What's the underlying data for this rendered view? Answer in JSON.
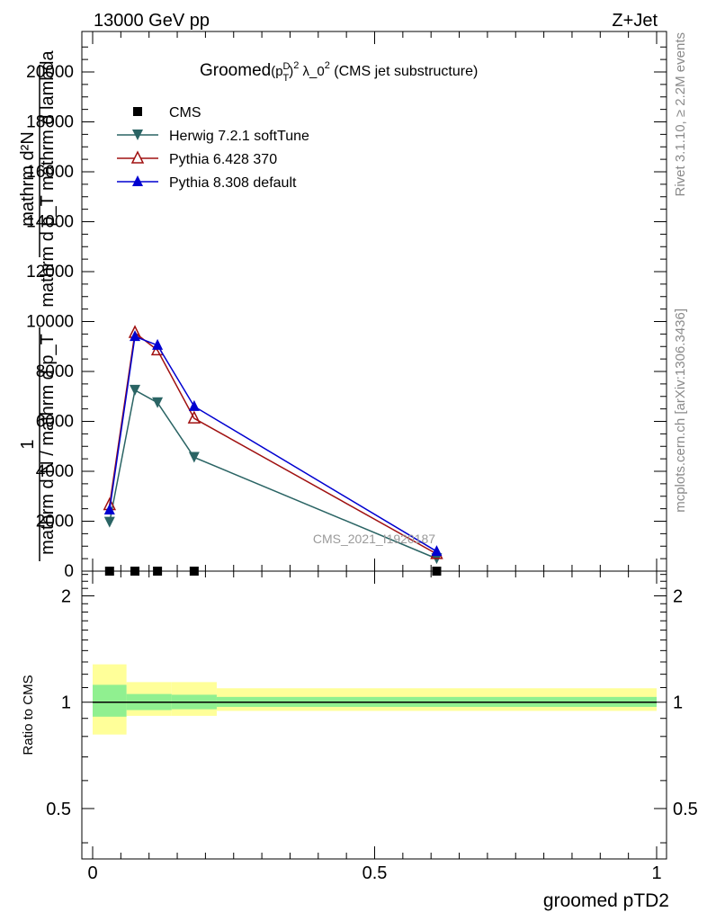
{
  "header": {
    "energy": "13000 GeV pp",
    "process": "Z+Jet"
  },
  "side": {
    "rivet": "Rivet 3.1.10, ≥ 2.2M events",
    "mcplots": "mcplots.cern.ch [arXiv:1306.3436]"
  },
  "chart_data": [
    {
      "type": "line",
      "title": "Groomed(p_T^D)^2 λ_0^2 (CMS jet substructure)",
      "title_parts": {
        "a": "Groomed",
        "b": "(p",
        "b_sup": "D",
        "b_sub": "T",
        "c": ")",
        "c_sup": "2",
        "d": " λ_0",
        "d_sup": "2",
        "e": " (CMS jet substructure)"
      },
      "ylabel_parts": [
        "mathrm d²N",
        "mathrm d p_T mathrm d lambda",
        "1",
        "mathrm d N / mathrm d p_T"
      ],
      "xlabel": "groomed pTD2",
      "watermark": "CMS_2021_I1920187",
      "xlim": [
        0,
        1
      ],
      "ylim": [
        0,
        21500
      ],
      "yticks": [
        0,
        2000,
        4000,
        6000,
        8000,
        10000,
        12000,
        14000,
        16000,
        18000,
        20000
      ],
      "ytick_labels": [
        "0",
        "2000",
        "4000",
        "6000",
        "8000",
        "10000",
        "12000",
        "14000",
        "16000",
        "18000",
        "20000"
      ],
      "legend_position": "top-left",
      "series": [
        {
          "name": "CMS",
          "color": "#000000",
          "marker": "square",
          "x": [
            0.03,
            0.075,
            0.115,
            0.18,
            0.61
          ],
          "y": [
            0,
            0,
            0,
            0,
            0
          ]
        },
        {
          "name": "Herwig 7.2.1 softTune",
          "color": "#2a6464",
          "marker": "triangle-down",
          "x": [
            0.03,
            0.075,
            0.115,
            0.18,
            0.61
          ],
          "y": [
            1960,
            7250,
            6750,
            4560,
            500
          ]
        },
        {
          "name": "Pythia 6.428 370",
          "color": "#a01010",
          "marker": "triangle-up-open",
          "x": [
            0.03,
            0.075,
            0.115,
            0.18,
            0.61
          ],
          "y": [
            2650,
            9550,
            8850,
            6120,
            690
          ]
        },
        {
          "name": "Pythia 8.308 default",
          "color": "#0000d0",
          "marker": "triangle-up",
          "x": [
            0.03,
            0.075,
            0.115,
            0.18,
            0.61
          ],
          "y": [
            2450,
            9400,
            9050,
            6600,
            790
          ]
        }
      ]
    },
    {
      "type": "area",
      "ylabel": "Ratio to CMS",
      "xlabel": "groomed pTD2",
      "xlim": [
        0,
        1
      ],
      "ylim": [
        0.36,
        2.35
      ],
      "ylog": true,
      "yticks": [
        0.5,
        1,
        2
      ],
      "ytick_labels": [
        "0.5",
        "1",
        "2"
      ],
      "xticks": [
        0,
        0.5,
        1
      ],
      "xtick_labels": [
        "0",
        "0.5",
        "1"
      ],
      "reference": 1,
      "bands": {
        "edges": [
          0,
          0.06,
          0.14,
          0.22,
          1.0
        ],
        "stat_low": [
          0.91,
          0.95,
          0.955,
          0.97
        ],
        "stat_high": [
          1.12,
          1.055,
          1.05,
          1.035
        ],
        "total_low": [
          0.81,
          0.915,
          0.915,
          0.945
        ],
        "total_high": [
          1.28,
          1.14,
          1.14,
          1.095
        ],
        "stat_color": "#90f090",
        "total_color": "#ffff99"
      }
    }
  ]
}
